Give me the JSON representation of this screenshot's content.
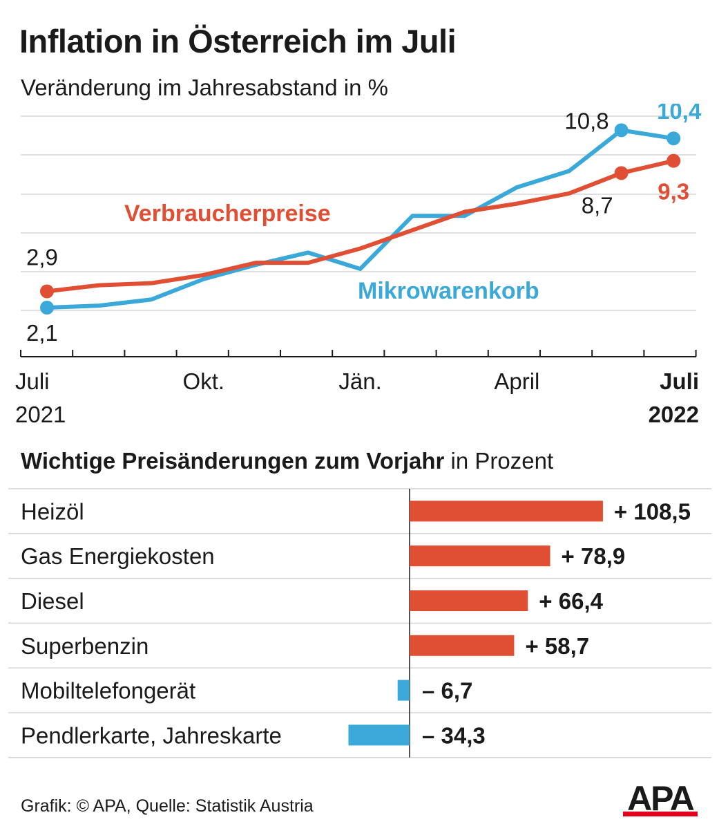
{
  "header": {
    "title": "Inflation in Österreich im Juli",
    "subtitle": "Veränderung im Jahresabstand in %"
  },
  "chart_data": [
    {
      "type": "line",
      "title": "Inflation in Österreich im Juli",
      "subtitle": "Veränderung im Jahresabstand in %",
      "x": [
        "2021-07",
        "2021-08",
        "2021-09",
        "2021-10",
        "2021-11",
        "2021-12",
        "2022-01",
        "2022-02",
        "2022-03",
        "2022-04",
        "2022-05",
        "2022-06",
        "2022-07"
      ],
      "x_tick_labels": [
        {
          "month": "2021-07",
          "line1": "Juli",
          "line2": "2021",
          "bold": false
        },
        {
          "month": "2021-10",
          "line1": "Okt.",
          "line2": "",
          "bold": false
        },
        {
          "month": "2022-01",
          "line1": "Jän.",
          "line2": "",
          "bold": false
        },
        {
          "month": "2022-04",
          "line1": "April",
          "line2": "",
          "bold": false
        },
        {
          "month": "2022-07",
          "line1": "Juli",
          "line2": "2022",
          "bold": true
        }
      ],
      "ylim": [
        0,
        12
      ],
      "grid": true,
      "series": [
        {
          "name": "Verbraucherpreise",
          "color": "#e04e33",
          "values": [
            2.9,
            3.2,
            3.3,
            3.7,
            4.3,
            4.3,
            5.0,
            5.9,
            6.8,
            7.2,
            7.7,
            8.7,
            9.3
          ],
          "point_labels": [
            {
              "month": "2021-07",
              "text": "2,9",
              "bold": false,
              "color": "#1a1a1a"
            },
            {
              "month": "2022-06",
              "text": "8,7",
              "bold": false,
              "color": "#1a1a1a"
            },
            {
              "month": "2022-07",
              "text": "9,3",
              "bold": true,
              "color": "#e04e33"
            }
          ]
        },
        {
          "name": "Mikrowarenkorb",
          "color": "#3aa8d8",
          "values": [
            2.1,
            2.2,
            2.5,
            3.5,
            4.2,
            4.8,
            4.0,
            6.6,
            6.6,
            8.0,
            8.8,
            10.8,
            10.4
          ],
          "point_labels": [
            {
              "month": "2021-07",
              "text": "2,1",
              "bold": false,
              "color": "#1a1a1a"
            },
            {
              "month": "2022-06",
              "text": "10,8",
              "bold": false,
              "color": "#1a1a1a"
            },
            {
              "month": "2022-07",
              "text": "10,4",
              "bold": true,
              "color": "#3aa8d8"
            }
          ]
        }
      ]
    },
    {
      "type": "bar",
      "orientation": "horizontal",
      "title": "Wichtige Preisänderungen zum Vorjahr",
      "title_unit": "in Prozent",
      "categories": [
        "Heizöl",
        "Gas Energiekosten",
        "Diesel",
        "Superbenzin",
        "Mobiltelefongerät",
        "Pendlerkarte, Jahreskarte"
      ],
      "values": [
        108.5,
        78.9,
        66.4,
        58.7,
        -6.7,
        -34.3
      ],
      "value_labels": [
        "+ 108,5",
        "+ 78,9",
        "+ 66,4",
        "+ 58,7",
        "– 6,7",
        "– 34,3"
      ],
      "positive_color": "#e04e33",
      "negative_color": "#3aa8d8"
    }
  ],
  "footer": {
    "credit": "Grafik: © APA, Quelle: Statistik Austria",
    "logo_text": "APA",
    "logo_color": "#1a1a1a",
    "logo_accent": "#e3001b"
  }
}
